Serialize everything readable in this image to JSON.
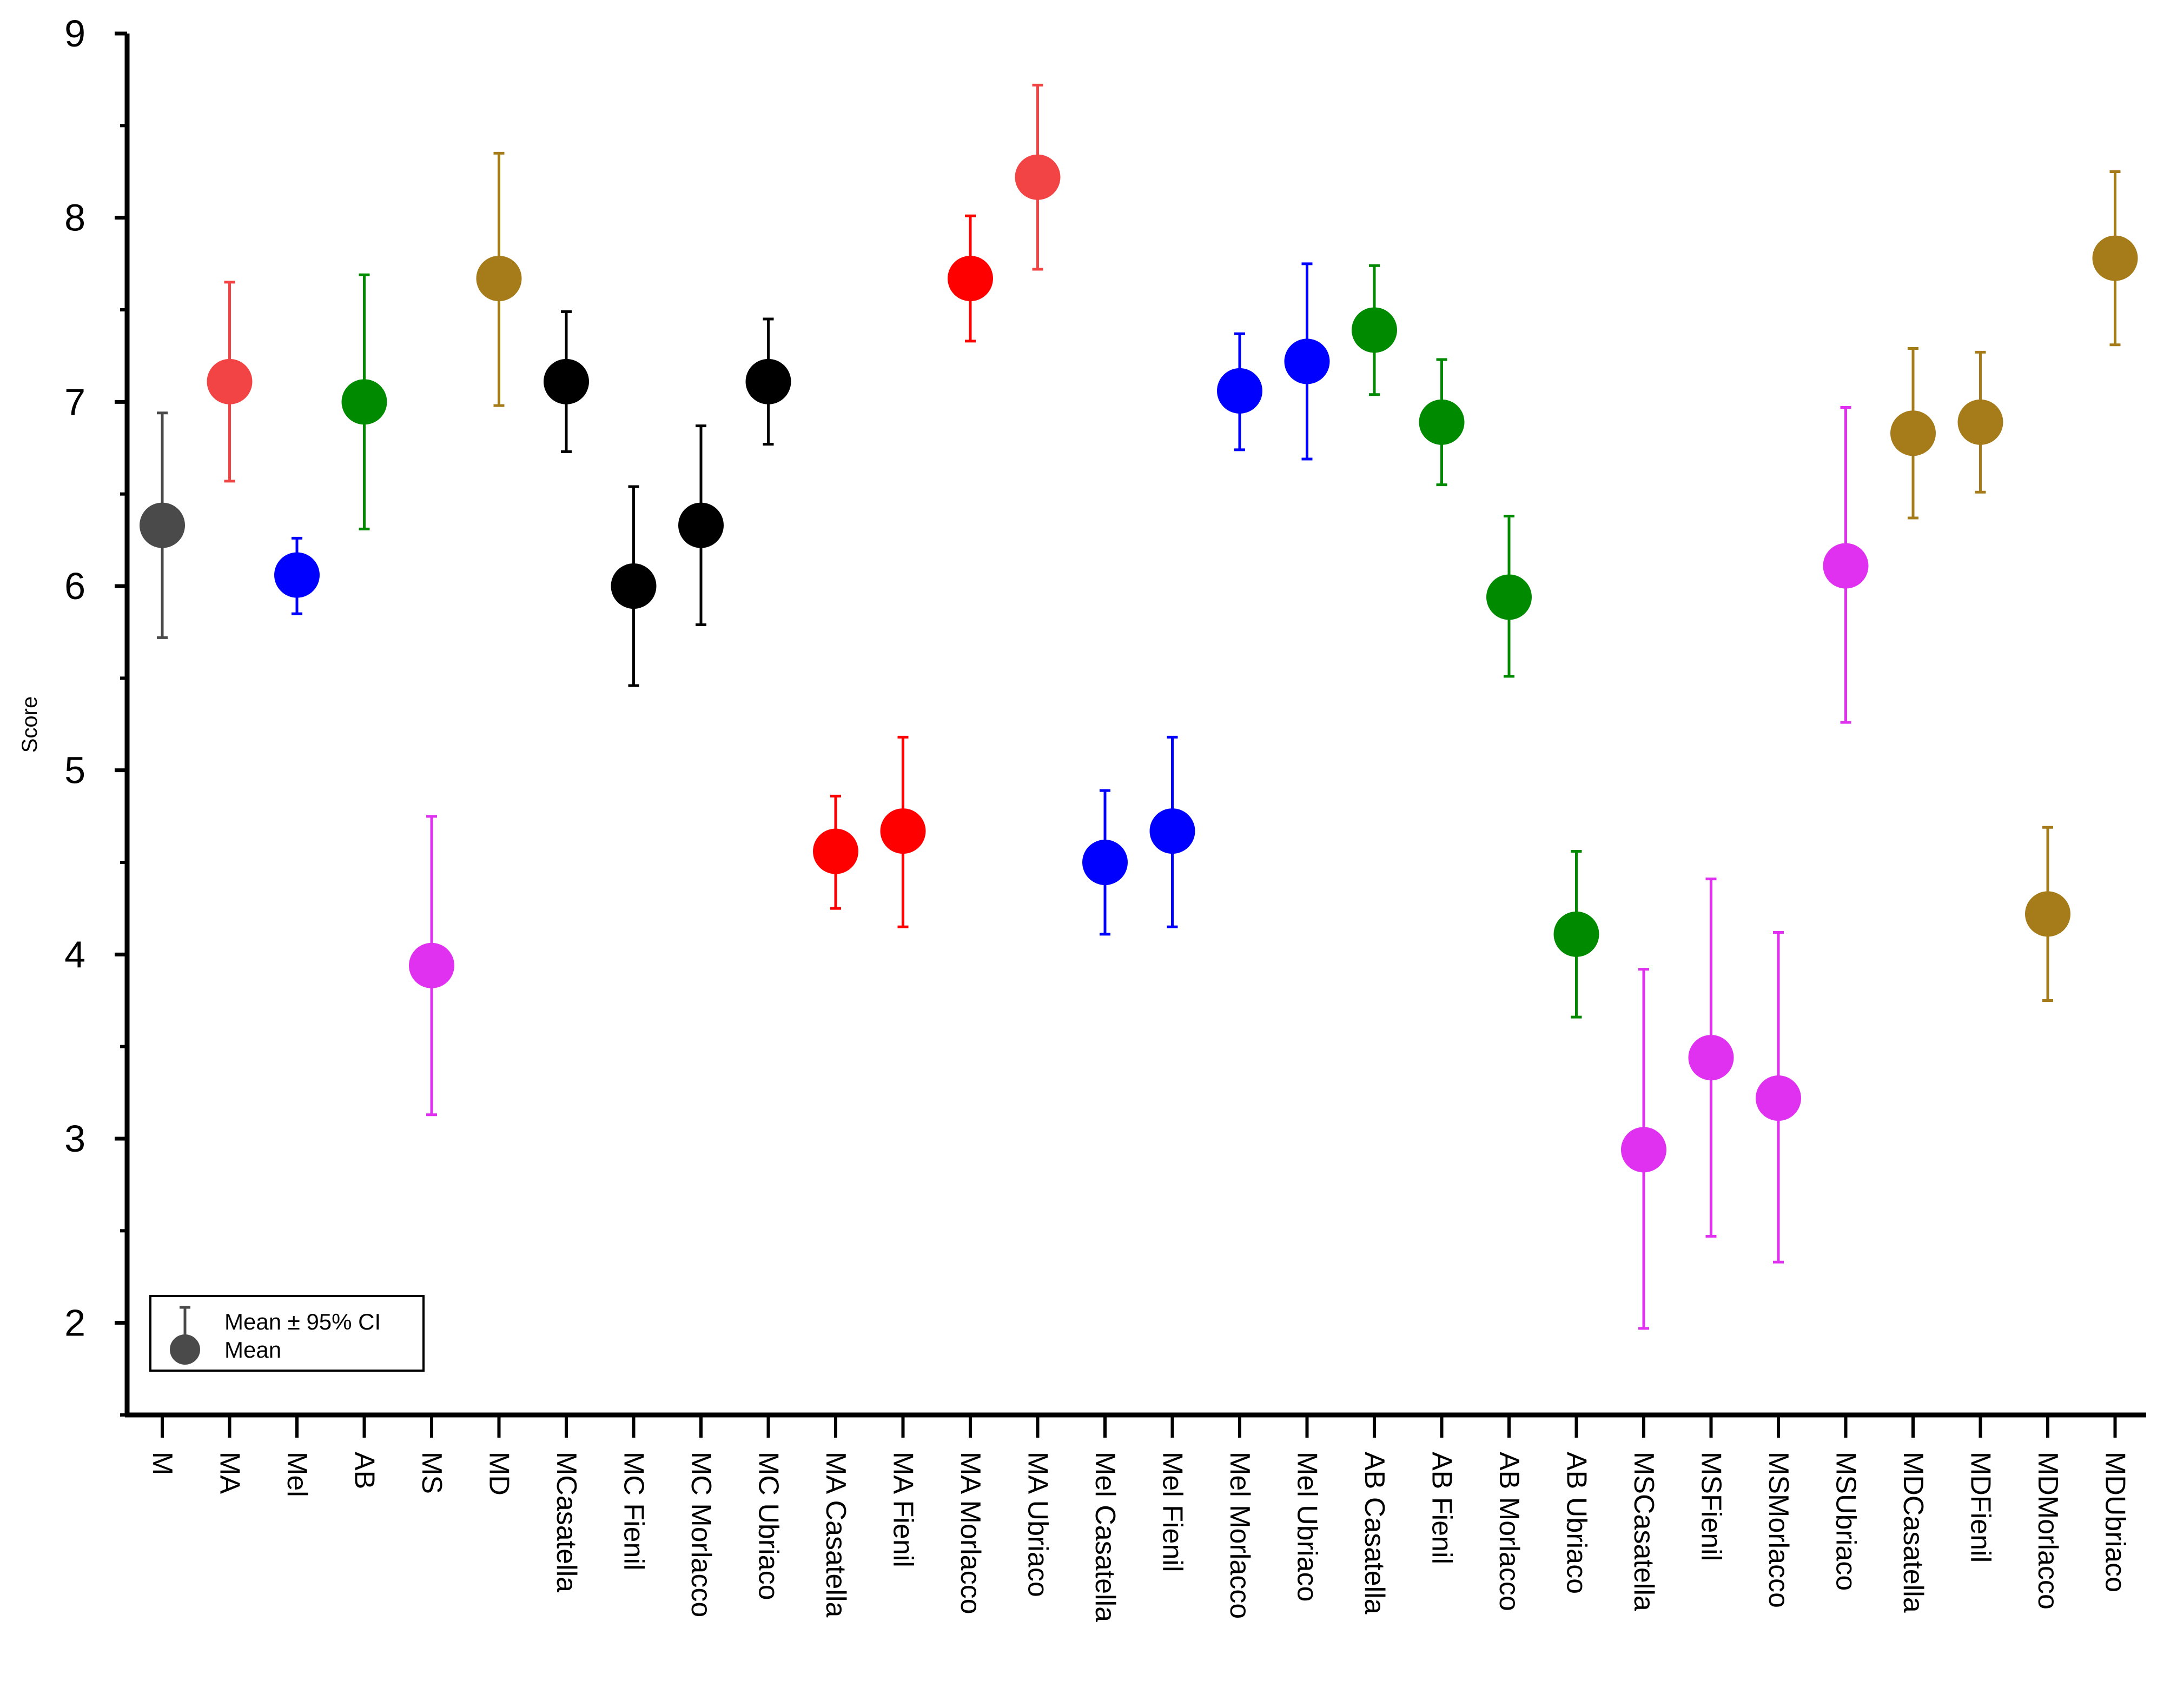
{
  "chart_data": {
    "type": "scatter",
    "title": "",
    "xlabel": "",
    "ylabel": "Score",
    "ylim": [
      1.5,
      9
    ],
    "yticks": [
      2,
      3,
      4,
      5,
      6,
      7,
      8,
      9
    ],
    "ytick_labels": [
      "2",
      "3",
      "4",
      "5",
      "6",
      "7",
      "8",
      "9"
    ],
    "grid": false,
    "legend": {
      "position": "bottom-left",
      "entries": [
        {
          "label": "Mean ± 95% CI",
          "marker": "errorbar"
        },
        {
          "label": "Mean",
          "marker": "circle"
        }
      ],
      "color": "#4a4a4a"
    },
    "categories": [
      "M",
      "MA",
      "Mel",
      "AB",
      "MS",
      "MD",
      "MCasatella",
      "MC Fienil",
      "MC Morlacco",
      "MC Ubriaco",
      "MA Casatella",
      "MA Fienil",
      "MA Morlacco",
      "MA Ubriaco",
      "Mel Casatella",
      "Mel Fienil",
      "Mel Morlacco",
      "Mel Ubriaco",
      "AB Casatella",
      "AB Fienil",
      "AB Morlacco",
      "AB Ubriaco",
      "MSCasatella",
      "MSFienil",
      "MSMorlacco",
      "MSUbriaco",
      "MDCasatella",
      "MDFienil",
      "MDMorlacco",
      "MDUbriaco"
    ],
    "points": [
      {
        "category": "M",
        "mean": 6.33,
        "low": 5.72,
        "high": 6.94,
        "color": "#4a4a4a"
      },
      {
        "category": "MA",
        "mean": 7.11,
        "low": 6.57,
        "high": 7.65,
        "color": "#f24444"
      },
      {
        "category": "Mel",
        "mean": 6.06,
        "low": 5.85,
        "high": 6.26,
        "color": "#0000ff"
      },
      {
        "category": "AB",
        "mean": 7.0,
        "low": 6.31,
        "high": 7.69,
        "color": "#008a00"
      },
      {
        "category": "MS",
        "mean": 3.94,
        "low": 3.13,
        "high": 4.75,
        "color": "#e030f0"
      },
      {
        "category": "MD",
        "mean": 7.67,
        "low": 6.98,
        "high": 8.35,
        "color": "#a67c1a"
      },
      {
        "category": "MCasatella",
        "mean": 7.11,
        "low": 6.73,
        "high": 7.49,
        "color": "#000000"
      },
      {
        "category": "MC Fienil",
        "mean": 6.0,
        "low": 5.46,
        "high": 6.54,
        "color": "#000000"
      },
      {
        "category": "MC Morlacco",
        "mean": 6.33,
        "low": 5.79,
        "high": 6.87,
        "color": "#000000"
      },
      {
        "category": "MC Ubriaco",
        "mean": 7.11,
        "low": 6.77,
        "high": 7.45,
        "color": "#000000"
      },
      {
        "category": "MA Casatella",
        "mean": 4.56,
        "low": 4.25,
        "high": 4.86,
        "color": "#ff0000"
      },
      {
        "category": "MA Fienil",
        "mean": 4.67,
        "low": 4.15,
        "high": 5.18,
        "color": "#ff0000"
      },
      {
        "category": "MA Morlacco",
        "mean": 7.67,
        "low": 7.33,
        "high": 8.01,
        "color": "#ff0000"
      },
      {
        "category": "MA Ubriaco",
        "mean": 8.22,
        "low": 7.72,
        "high": 8.72,
        "color": "#f24444"
      },
      {
        "category": "Mel Casatella",
        "mean": 4.5,
        "low": 4.11,
        "high": 4.89,
        "color": "#0000ff"
      },
      {
        "category": "Mel Fienil",
        "mean": 4.67,
        "low": 4.15,
        "high": 5.18,
        "color": "#0000ff"
      },
      {
        "category": "Mel Morlacco",
        "mean": 7.06,
        "low": 6.74,
        "high": 7.37,
        "color": "#0000ff"
      },
      {
        "category": "Mel Ubriaco",
        "mean": 7.22,
        "low": 6.69,
        "high": 7.75,
        "color": "#0000ff"
      },
      {
        "category": "AB Casatella",
        "mean": 7.39,
        "low": 7.04,
        "high": 7.74,
        "color": "#008a00"
      },
      {
        "category": "AB Fienil",
        "mean": 6.89,
        "low": 6.55,
        "high": 7.23,
        "color": "#008a00"
      },
      {
        "category": "AB Morlacco",
        "mean": 5.94,
        "low": 5.51,
        "high": 6.38,
        "color": "#008a00"
      },
      {
        "category": "AB Ubriaco",
        "mean": 4.11,
        "low": 3.66,
        "high": 4.56,
        "color": "#008a00"
      },
      {
        "category": "MSCasatella",
        "mean": 2.94,
        "low": 1.97,
        "high": 3.92,
        "color": "#e030f0"
      },
      {
        "category": "MSFienil",
        "mean": 3.44,
        "low": 2.47,
        "high": 4.41,
        "color": "#e030f0"
      },
      {
        "category": "MSMorlacco",
        "mean": 3.22,
        "low": 2.33,
        "high": 4.12,
        "color": "#e030f0"
      },
      {
        "category": "MSUbriaco",
        "mean": 6.11,
        "low": 5.26,
        "high": 6.97,
        "color": "#e030f0"
      },
      {
        "category": "MDCasatella",
        "mean": 6.83,
        "low": 6.37,
        "high": 7.29,
        "color": "#a67c1a"
      },
      {
        "category": "MDFienil",
        "mean": 6.89,
        "low": 6.51,
        "high": 7.27,
        "color": "#a67c1a"
      },
      {
        "category": "MDMorlacco",
        "mean": 4.22,
        "low": 3.75,
        "high": 4.69,
        "color": "#a67c1a"
      },
      {
        "category": "MDUbriaco",
        "mean": 7.78,
        "low": 7.31,
        "high": 8.25,
        "color": "#a67c1a"
      }
    ]
  }
}
